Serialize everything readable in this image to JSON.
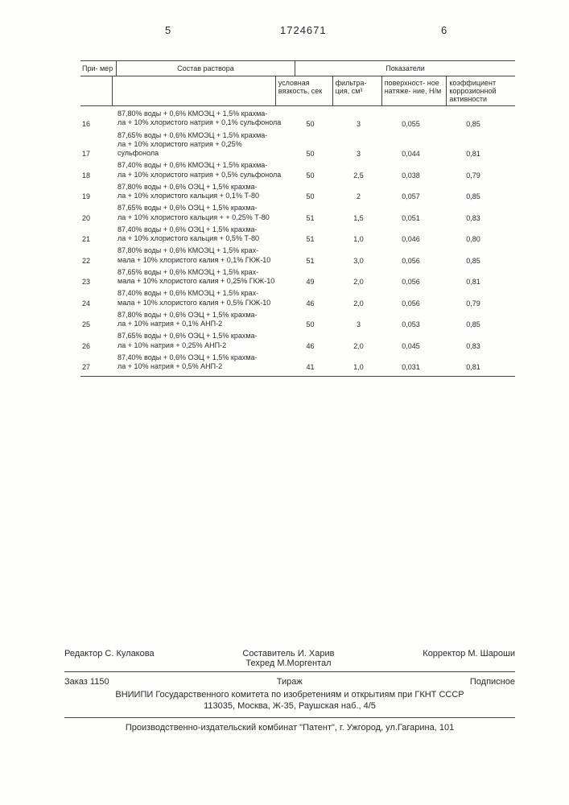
{
  "page_left": "5",
  "page_right": "6",
  "doc_number": "1724671",
  "table": {
    "header": {
      "primer": "При-\nмер",
      "sostav": "Состав раствора",
      "pokaz": "Показатели",
      "sub": {
        "c2": "условная вязкость, сек",
        "c3": "фильтра-\nция, см³",
        "c4": "поверхност-\nное натяже-\nние, Н/м",
        "c5": "коэффициент коррозионной активности"
      }
    },
    "rows": [
      {
        "n": "16",
        "s": "87,80% воды + 0,6% КМОЭЦ + 1,5% крахма-\nла + 10% хлористого натрия + 0,1% сульфонола",
        "v2": "50",
        "v3": "3",
        "v4": "0,055",
        "v5": "0,85"
      },
      {
        "n": "17",
        "s": "87,65% воды + 0,6% КМОЭЦ + 1,5% крахма-\nла + 10% хлористого натрия + 0,25% сульфонола",
        "v2": "50",
        "v3": "3",
        "v4": "0,044",
        "v5": "0,81"
      },
      {
        "n": "18",
        "s": "87,40% воды + 0,6% КМОЭЦ + 1,5% крахма-\nла + 10% хлористого натрия + 0,5% сульфонола",
        "v2": "50",
        "v3": "2,5",
        "v4": "0,038",
        "v5": "0,79"
      },
      {
        "n": "19",
        "s": "87,80% воды + 0,6% ОЭЦ + 1,5% крахма-\nла + 10% хлористого кальция + 0,1% Т-80",
        "v2": "50",
        "v3": "2",
        "v4": "0,057",
        "v5": "0,85"
      },
      {
        "n": "20",
        "s": "87,65% воды + 0,6% ОЭЦ + 1,5% крахма-\nла + 10% хлористого кальция + + 0,25% Т-80",
        "v2": "51",
        "v3": "1,5",
        "v4": "0,051",
        "v5": "0,83"
      },
      {
        "n": "21",
        "s": "87,40% воды + 0,6% ОЭЦ + 1,5% крахма-\nла + 10% хлористого кальция + 0,5% Т-80",
        "v2": "51",
        "v3": "1,0",
        "v4": "0,046",
        "v5": "0,80"
      },
      {
        "n": "22",
        "s": "87,80% воды + 0,6% КМОЭЦ + 1,5% крах-\nмала + 10% хлористого калия + 0,1% ГКЖ-10",
        "v2": "51",
        "v3": "3,0",
        "v4": "0,056",
        "v5": "0,85"
      },
      {
        "n": "23",
        "s": "87,65% воды + 0,6% КМОЭЦ + 1,5% крах-\nмала + 10% хлористого калия + 0,25% ГКЖ-10",
        "v2": "49",
        "v3": "2,0",
        "v4": "0,056",
        "v5": "0,81"
      },
      {
        "n": "24",
        "s": "87,40% воды + 0,6% КМОЭЦ + 1,5% крах-\nмала + 10% хлористого калия + 0,5% ГКЖ-10",
        "v2": "46",
        "v3": "2,0",
        "v4": "0,056",
        "v5": "0,79"
      },
      {
        "n": "25",
        "s": "87,80% воды + 0,6% ОЭЦ + 1,5% крахма-\nла + 10% натрия + 0,1% АНП-2",
        "v2": "50",
        "v3": "3",
        "v4": "0,053",
        "v5": "0,85"
      },
      {
        "n": "26",
        "s": "87,65% воды + 0,6% ОЭЦ + 1,5% крахма-\nла + 10% натрия + 0,25% АНП-2",
        "v2": "46",
        "v3": "2,0",
        "v4": "0,045",
        "v5": "0,83"
      },
      {
        "n": "27",
        "s": "87,40% воды + 0,6% ОЭЦ + 1,5% крахма-\nла + 10% натрия + 0,5% АНП-2",
        "v2": "41",
        "v3": "1,0",
        "v4": "0,031",
        "v5": "0,81"
      }
    ]
  },
  "footer": {
    "editor_label": "Редактор",
    "editor": "С. Кулакова",
    "sostavitel_label": "Составитель",
    "sostavitel": "И. Харив",
    "tehred_label": "Техред",
    "tehred": "М.Моргентал",
    "corrector_label": "Корректор",
    "corrector": "М. Шароши",
    "zakaz_label": "Заказ",
    "zakaz": "1150",
    "tirazh": "Тираж",
    "podpisnoe": "Подписное",
    "org": "ВНИИПИ Государственного комитета по изобретениям и открытиям при ГКНТ СССР",
    "addr": "113035, Москва, Ж-35, Раушская наб., 4/5",
    "bottom": "Производственно-издательский комбинат \"Патент\", г. Ужгород, ул.Гагарина, 101"
  }
}
